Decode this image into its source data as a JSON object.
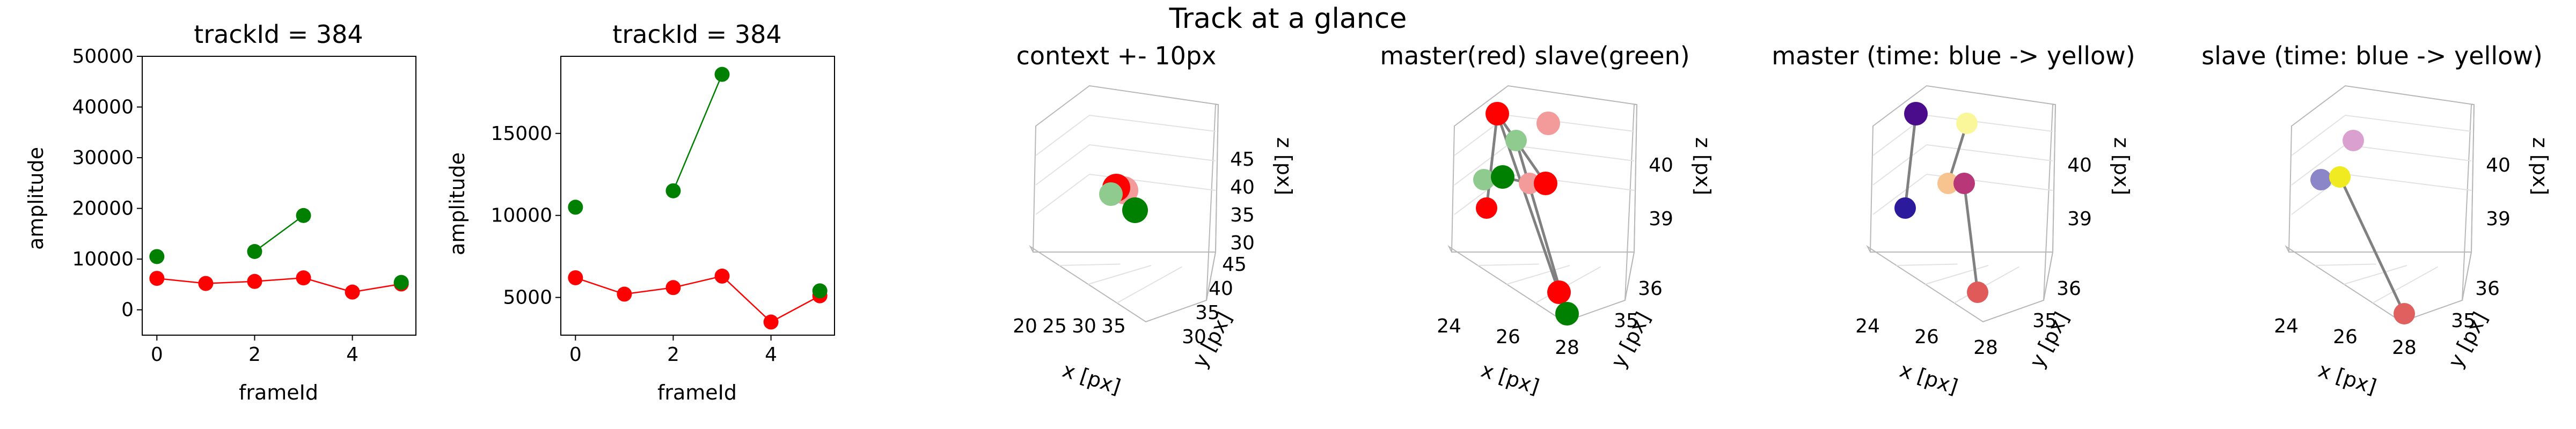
{
  "figure": {
    "suptitle": "Track at a glance"
  },
  "colors": {
    "master": "#ff0000",
    "slave": "#008000",
    "master_light": "#f39a9a",
    "slave_light": "#8fcb8f",
    "traj": "#808080",
    "time_start": "#2c1a9c",
    "time_mid": "#b73779",
    "time_end": "#f9f53a"
  },
  "chart_data": [
    {
      "id": "amp_full",
      "type": "line",
      "title": "trackId = 384",
      "xlabel": "frameId",
      "ylabel": "amplitude",
      "xlim": [
        -0.3,
        5.3
      ],
      "ylim": [
        -5000,
        50000
      ],
      "xticks": [
        "0",
        "2",
        "4"
      ],
      "yticks": [
        "0",
        "10000",
        "20000",
        "30000",
        "40000",
        "50000"
      ],
      "series": [
        {
          "color": "#ff0000",
          "x": [
            0,
            1,
            2,
            3,
            4,
            5
          ],
          "y": [
            6200,
            5200,
            5600,
            6300,
            3500,
            5100
          ]
        },
        {
          "color": "#008000",
          "x": [
            0,
            2,
            3,
            5
          ],
          "y": [
            10500,
            11500,
            18600,
            5400
          ],
          "connect": [
            [
              1,
              2
            ]
          ]
        }
      ]
    },
    {
      "id": "amp_zoom",
      "type": "line",
      "title": "trackId = 384",
      "xlabel": "frameId",
      "ylabel": "amplitude",
      "xlim": [
        -0.3,
        5.3
      ],
      "ylim": [
        2700,
        19700
      ],
      "xticks": [
        "0",
        "2",
        "4"
      ],
      "yticks": [
        "5000",
        "10000",
        "15000"
      ],
      "series": [
        {
          "color": "#ff0000",
          "x": [
            0,
            1,
            2,
            3,
            4,
            5
          ],
          "y": [
            6200,
            5200,
            5600,
            6300,
            3500,
            5100
          ]
        },
        {
          "color": "#008000",
          "x": [
            0,
            2,
            3,
            5
          ],
          "y": [
            10500,
            11500,
            18600,
            5400
          ],
          "connect": [
            [
              1,
              2
            ]
          ]
        }
      ]
    },
    {
      "id": "context3d",
      "type": "scatter",
      "title": "context +- 10px",
      "xlabel": "x [px]",
      "ylabel": "y [px]",
      "zlabel": "z [px]",
      "xticks": [
        "20",
        "25",
        "30",
        "35"
      ],
      "yticks": [
        "30",
        "35",
        "40",
        "45"
      ],
      "zticks": [
        "30",
        "35",
        "40",
        "45"
      ],
      "markers": [
        {
          "color": "#f39a9a"
        },
        {
          "color": "#ff0000"
        },
        {
          "color": "#8fcb8f"
        },
        {
          "color": "#008000"
        }
      ]
    },
    {
      "id": "ms3d",
      "type": "scatter",
      "title": "master(red) slave(green)",
      "xlabel": "x [px]",
      "ylabel": "y [px]",
      "zlabel": "z [px]",
      "xticks": [
        "24",
        "26",
        "28"
      ],
      "yticks": [
        "35",
        "36"
      ],
      "zticks": [
        "39",
        "40"
      ],
      "markers": [
        {
          "color": "#ff0000"
        },
        {
          "color": "#f39a9a"
        },
        {
          "color": "#8fcb8f"
        },
        {
          "color": "#8fcb8f"
        },
        {
          "color": "#008000"
        },
        {
          "color": "#f39a9a"
        },
        {
          "color": "#ff0000"
        },
        {
          "color": "#ff0000"
        },
        {
          "color": "#ff0000"
        },
        {
          "color": "#008000"
        }
      ]
    },
    {
      "id": "master3d",
      "type": "scatter",
      "title": "master (time: blue -> yellow)",
      "xlabel": "x [px]",
      "ylabel": "y [px]",
      "zlabel": "z [px]",
      "xticks": [
        "24",
        "26",
        "28"
      ],
      "yticks": [
        "35",
        "36"
      ],
      "zticks": [
        "39",
        "40"
      ],
      "markers": [
        {
          "color": "#4b0c8c"
        },
        {
          "color": "#f9f79a"
        },
        {
          "color": "#f7c38e"
        },
        {
          "color": "#b73779"
        },
        {
          "color": "#2c1a9c"
        },
        {
          "color": "#e05a5a"
        }
      ]
    },
    {
      "id": "slave3d",
      "type": "scatter",
      "title": "slave (time: blue -> yellow)",
      "xlabel": "x [px]",
      "ylabel": "y [px]",
      "zlabel": "z [px]",
      "xticks": [
        "24",
        "26",
        "28"
      ],
      "yticks": [
        "35",
        "36"
      ],
      "zticks": [
        "39",
        "40"
      ],
      "markers": [
        {
          "color": "#d9a0d0"
        },
        {
          "color": "#8a86c8"
        },
        {
          "color": "#f0ea20"
        },
        {
          "color": "#e06060"
        }
      ]
    }
  ]
}
